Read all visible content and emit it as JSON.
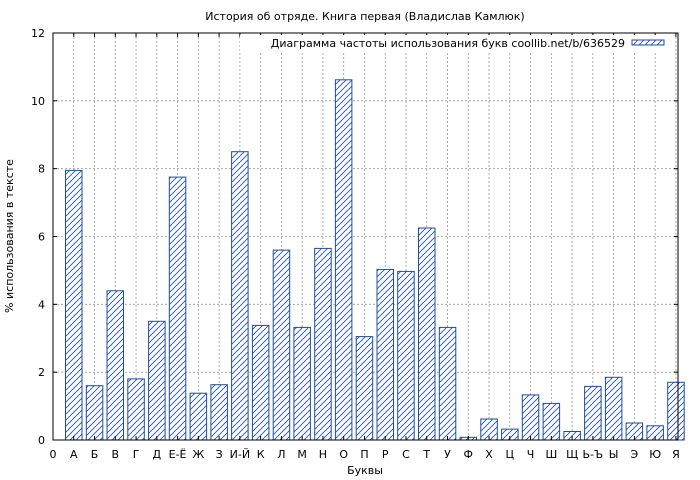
{
  "chart_data": {
    "type": "bar",
    "title": "История об отряде. Книга первая (Владислав Камлюк)",
    "xlabel": "Буквы",
    "ylabel": "% использования в тексте",
    "legend": "Диаграмма частоты использования букв coollib.net/b/636529",
    "legend_position": "top-right",
    "grid": true,
    "ylim": [
      0,
      12
    ],
    "yticks": [
      "0",
      "2",
      "4",
      "6",
      "8",
      "10",
      "12"
    ],
    "x_origin_label": "0",
    "categories": [
      "А",
      "Б",
      "В",
      "Г",
      "Д",
      "Е-Ё",
      "Ж",
      "З",
      "И-Й",
      "К",
      "Л",
      "М",
      "Н",
      "О",
      "П",
      "Р",
      "С",
      "Т",
      "У",
      "Ф",
      "Х",
      "Ц",
      "Ч",
      "Ш",
      "Щ",
      "Ь-Ъ",
      "Ы",
      "Э",
      "Ю",
      "Я"
    ],
    "values": [
      7.95,
      1.6,
      4.4,
      1.8,
      3.5,
      7.75,
      1.38,
      1.63,
      8.5,
      3.38,
      5.6,
      3.32,
      5.65,
      10.62,
      3.05,
      5.03,
      4.97,
      6.25,
      3.32,
      0.08,
      0.62,
      0.32,
      1.33,
      1.08,
      0.25,
      1.58,
      1.85,
      0.5,
      0.42,
      1.7
    ],
    "colors": {
      "bar_stroke": "#1f4e9c",
      "hatch": "#1f4e9c",
      "grid": "#999999"
    }
  }
}
